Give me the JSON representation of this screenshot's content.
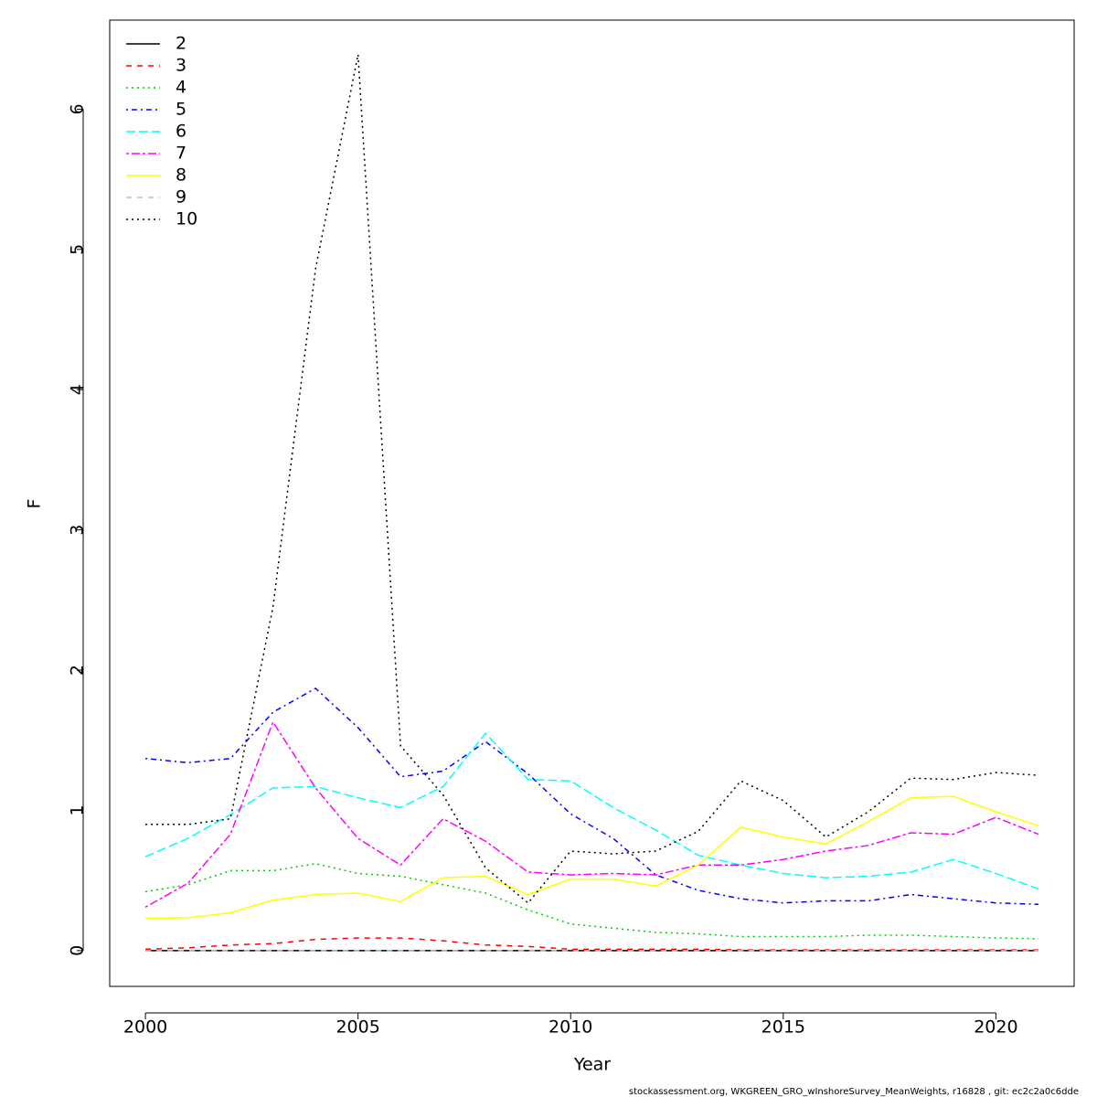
{
  "chart_data": {
    "type": "line",
    "x_label": "Year",
    "y_label": "F",
    "footnote": "stockassessment.org, WKGREEN_GRO_wInshoreSurvey_MeanWeights, r16828 , git: ec2c2a0c6dde",
    "x": [
      2000,
      2001,
      2002,
      2003,
      2004,
      2005,
      2006,
      2007,
      2008,
      2009,
      2010,
      2011,
      2012,
      2013,
      2014,
      2015,
      2016,
      2017,
      2018,
      2019,
      2020,
      2021
    ],
    "xlim": [
      1999.16,
      2021.84
    ],
    "xticks": [
      2000,
      2005,
      2010,
      2015,
      2020
    ],
    "ylim": [
      -0.255,
      6.635
    ],
    "yticks": [
      0,
      1,
      2,
      3,
      4,
      5,
      6
    ],
    "legend": "top-left",
    "series": [
      {
        "name": "2",
        "color": "#000000",
        "dash": "none",
        "values": [
          0,
          0,
          0,
          0,
          0,
          0,
          0,
          0,
          0,
          0,
          0,
          0,
          0,
          0,
          0,
          0,
          0,
          0,
          0,
          0,
          0,
          0
        ]
      },
      {
        "name": "3",
        "color": "#ff0000",
        "dash": "6,6",
        "values": [
          0.01,
          0.02,
          0.04,
          0.05,
          0.08,
          0.09,
          0.09,
          0.07,
          0.04,
          0.03,
          0.01,
          0.01,
          0.01,
          0.01,
          0.005,
          0.005,
          0.005,
          0.005,
          0.005,
          0.005,
          0.005,
          0.005
        ]
      },
      {
        "name": "4",
        "color": "#00cd00",
        "dash": "2,4",
        "values": [
          0.42,
          0.47,
          0.57,
          0.57,
          0.62,
          0.55,
          0.53,
          0.47,
          0.41,
          0.29,
          0.19,
          0.16,
          0.13,
          0.12,
          0.1,
          0.1,
          0.1,
          0.11,
          0.11,
          0.1,
          0.09,
          0.085
        ]
      },
      {
        "name": "5",
        "color": "#0000ff",
        "dash": "2,4,6,4",
        "values": [
          1.37,
          1.34,
          1.37,
          1.7,
          1.87,
          1.59,
          1.24,
          1.28,
          1.49,
          1.26,
          0.975,
          0.8,
          0.54,
          0.43,
          0.37,
          0.34,
          0.355,
          0.355,
          0.4,
          0.37,
          0.34,
          0.33
        ]
      },
      {
        "name": "6",
        "color": "#00ffff",
        "dash": "10,4",
        "values": [
          0.67,
          0.8,
          0.97,
          1.16,
          1.17,
          1.09,
          1.02,
          1.17,
          1.55,
          1.22,
          1.21,
          1.02,
          0.86,
          0.68,
          0.61,
          0.55,
          0.52,
          0.53,
          0.56,
          0.65,
          0.55,
          0.44
        ]
      },
      {
        "name": "7",
        "color": "#ff00ff",
        "dash": "3,3,9,3",
        "values": [
          0.31,
          0.48,
          0.83,
          1.63,
          1.16,
          0.8,
          0.61,
          0.94,
          0.78,
          0.56,
          0.54,
          0.55,
          0.54,
          0.61,
          0.61,
          0.65,
          0.71,
          0.75,
          0.84,
          0.83,
          0.95,
          0.83
        ]
      },
      {
        "name": "8",
        "color": "#ffff00",
        "dash": "none",
        "values": [
          0.23,
          0.235,
          0.27,
          0.36,
          0.4,
          0.41,
          0.35,
          0.52,
          0.53,
          0.4,
          0.51,
          0.51,
          0.46,
          0.61,
          0.88,
          0.81,
          0.76,
          0.92,
          1.09,
          1.1,
          0.99,
          0.89
        ]
      },
      {
        "name": "9",
        "color": "#bebebe",
        "dash": "6,6",
        "values": [
          0,
          0,
          0,
          0,
          0,
          0,
          0,
          0,
          0,
          0,
          0,
          0,
          0,
          0,
          0,
          0,
          0,
          0,
          0,
          0,
          0,
          0
        ]
      },
      {
        "name": "10",
        "color": "#000000",
        "dash": "2,4",
        "values": [
          0.9,
          0.9,
          0.94,
          2.45,
          4.86,
          6.39,
          1.46,
          1.11,
          0.59,
          0.34,
          0.71,
          0.69,
          0.71,
          0.85,
          1.21,
          1.07,
          0.81,
          0.99,
          1.23,
          1.22,
          1.27,
          1.25
        ]
      }
    ]
  }
}
